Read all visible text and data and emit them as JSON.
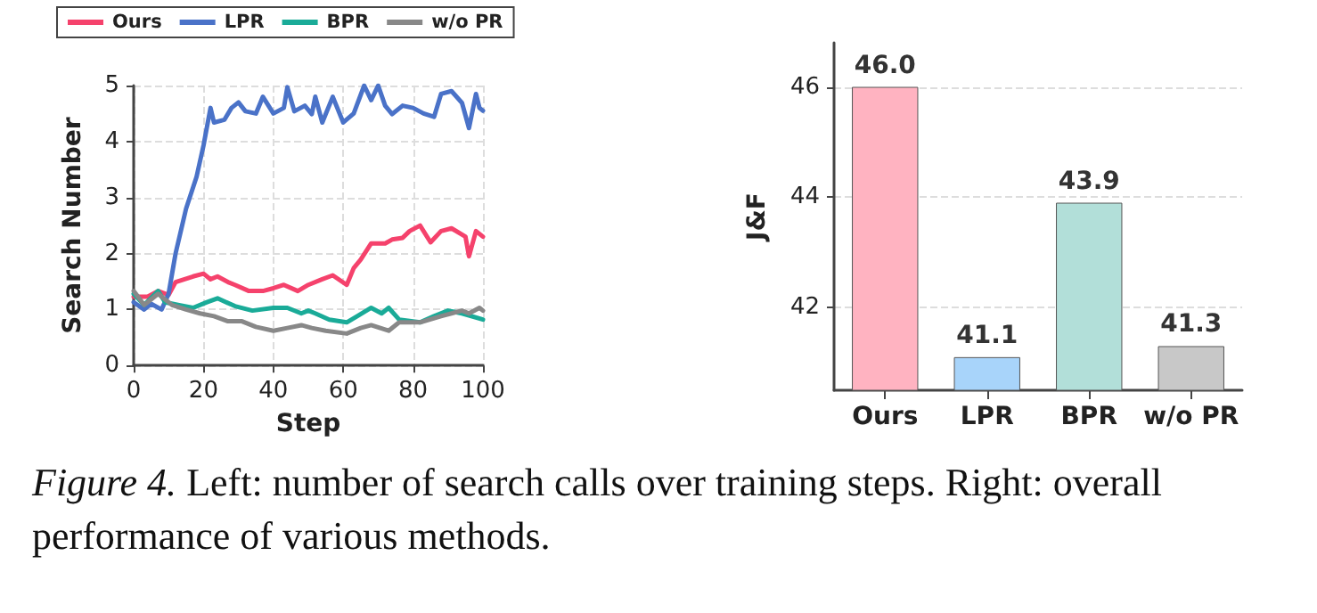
{
  "chart_data": [
    {
      "type": "line",
      "xlabel": "Step",
      "ylabel": "Search Number",
      "xlim": [
        0,
        100
      ],
      "xticks": [
        0,
        20,
        40,
        60,
        80,
        100
      ],
      "ylim": [
        0,
        5
      ],
      "yticks": [
        0,
        1,
        2,
        3,
        4,
        5
      ],
      "grid": true,
      "legend": "top",
      "marker": "none",
      "line_style": "solid",
      "annotations": [
        "Figure 4.",
        "Left: number of search calls over training steps. Right: overall performance of various methods."
      ],
      "series": [
        {
          "name": "Ours",
          "color": "#f5426c",
          "x": [
            0,
            4,
            7,
            10,
            12,
            17,
            20,
            22,
            24,
            27,
            29,
            33,
            37,
            40,
            43,
            47,
            50,
            54,
            57,
            61,
            63,
            65,
            68,
            72,
            74,
            77,
            79,
            82,
            85,
            88,
            91,
            95,
            96,
            98,
            100
          ],
          "values": [
            1.23,
            1.23,
            1.33,
            1.26,
            1.49,
            1.59,
            1.64,
            1.54,
            1.59,
            1.49,
            1.44,
            1.33,
            1.33,
            1.38,
            1.44,
            1.33,
            1.44,
            1.54,
            1.61,
            1.44,
            1.74,
            1.89,
            2.18,
            2.18,
            2.25,
            2.28,
            2.4,
            2.5,
            2.2,
            2.4,
            2.45,
            2.3,
            1.95,
            2.4,
            2.3
          ]
        },
        {
          "name": "LPR",
          "color": "#4a72c8",
          "x": [
            0,
            3,
            5,
            8,
            10,
            12,
            15,
            18,
            20,
            22,
            23,
            26,
            28,
            30,
            32,
            35,
            37,
            40,
            43,
            44,
            46,
            49,
            51,
            52,
            54,
            57,
            60,
            63,
            66,
            68,
            70,
            72,
            74,
            77,
            80,
            83,
            86,
            88,
            91,
            94,
            96,
            98,
            99,
            100
          ],
          "values": [
            1.13,
            1.0,
            1.1,
            1.0,
            1.28,
            2.0,
            2.8,
            3.37,
            3.93,
            4.6,
            4.34,
            4.39,
            4.6,
            4.7,
            4.54,
            4.5,
            4.8,
            4.5,
            4.6,
            4.97,
            4.54,
            4.64,
            4.49,
            4.8,
            4.34,
            4.8,
            4.34,
            4.5,
            5.0,
            4.74,
            5.0,
            4.64,
            4.49,
            4.64,
            4.6,
            4.5,
            4.44,
            4.85,
            4.9,
            4.69,
            4.24,
            4.85,
            4.6,
            4.55
          ]
        },
        {
          "name": "BPR",
          "color": "#1aab98",
          "x": [
            0,
            3,
            7,
            9,
            13,
            17,
            21,
            24,
            29,
            34,
            40,
            44,
            48,
            50,
            52,
            56,
            61,
            64,
            68,
            71,
            73,
            76,
            82,
            86,
            90,
            94,
            100
          ],
          "values": [
            1.28,
            1.08,
            1.33,
            1.13,
            1.08,
            1.03,
            1.13,
            1.2,
            1.06,
            0.98,
            1.03,
            1.03,
            0.93,
            0.98,
            0.93,
            0.82,
            0.77,
            0.88,
            1.03,
            0.93,
            1.03,
            0.82,
            0.77,
            0.88,
            0.98,
            0.93,
            0.82
          ]
        },
        {
          "name": "w/o PR",
          "color": "#888888",
          "x": [
            0,
            3,
            7,
            11,
            15,
            19,
            23,
            27,
            31,
            35,
            40,
            44,
            48,
            51,
            55,
            61,
            65,
            68,
            73,
            76,
            82,
            88,
            94,
            96,
            99,
            100
          ],
          "values": [
            1.33,
            1.08,
            1.28,
            1.08,
            1.0,
            0.93,
            0.88,
            0.79,
            0.79,
            0.69,
            0.62,
            0.67,
            0.72,
            0.67,
            0.62,
            0.57,
            0.67,
            0.72,
            0.62,
            0.77,
            0.77,
            0.88,
            0.98,
            0.93,
            1.03,
            0.98
          ]
        }
      ]
    },
    {
      "type": "bar",
      "ylabel": "J&F",
      "categories": [
        "Ours",
        "LPR",
        "BPR",
        "w/o PR"
      ],
      "values": [
        46.0,
        41.1,
        43.9,
        41.3
      ],
      "value_labels": [
        "46.0",
        "41.1",
        "43.9",
        "41.3"
      ],
      "colors": [
        "#ffb3c1",
        "#a8d4fa",
        "#b2dfd9",
        "#c8c8c8"
      ],
      "ylim": [
        40.5,
        46.8
      ],
      "yticks": [
        42,
        44,
        46
      ],
      "grid": "y"
    }
  ]
}
